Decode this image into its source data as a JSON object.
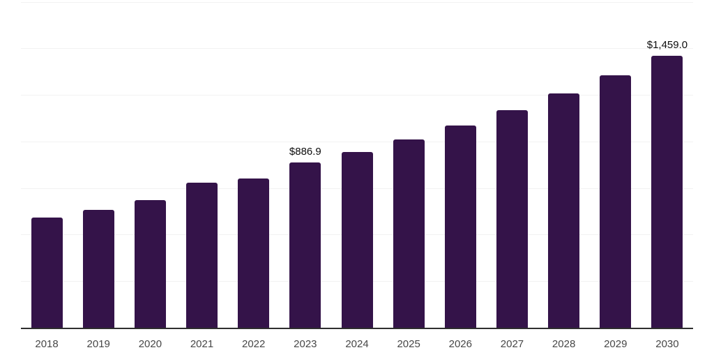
{
  "chart_data": {
    "type": "bar",
    "title": "",
    "xlabel": "",
    "ylabel": "",
    "categories": [
      "2018",
      "2019",
      "2020",
      "2021",
      "2022",
      "2023",
      "2024",
      "2025",
      "2026",
      "2027",
      "2028",
      "2029",
      "2030"
    ],
    "values": [
      592,
      633,
      685,
      778,
      800,
      886.9,
      942,
      1012,
      1087,
      1169,
      1258,
      1355,
      1459
    ],
    "data_labels": [
      {
        "category": "2023",
        "text": "$886.9"
      },
      {
        "category": "2030",
        "text": "$1,459.0"
      }
    ],
    "ylim": [
      0,
      1750
    ],
    "gridline_step": 250,
    "grid": "on",
    "legend": "none",
    "y_tick_labels_visible": false
  },
  "colors": {
    "bar": "#341349",
    "gridline": "#f2f2f2",
    "axis_line": "#2e2e2e",
    "tick_label": "#474747",
    "data_label": "#0d0d0d",
    "background": "#ffffff"
  }
}
